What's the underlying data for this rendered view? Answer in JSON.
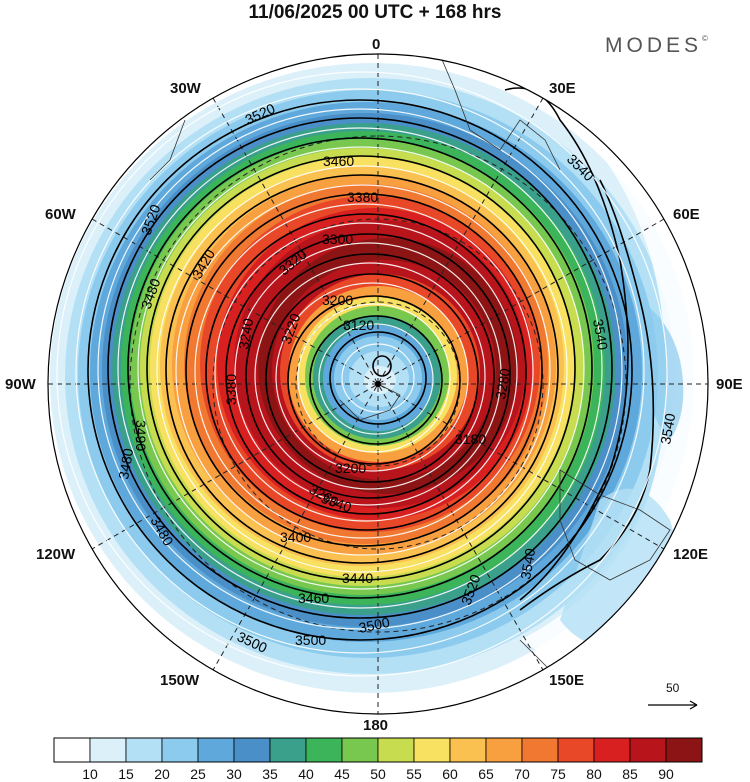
{
  "title": "11/06/2025  00 UTC  + 168 hrs",
  "brand": {
    "name": "MODES",
    "mark": "©"
  },
  "longitude_labels": {
    "top": "0",
    "bottom": "180",
    "left": "90W",
    "right": "90E",
    "w30": "30W",
    "e30": "30E",
    "w60": "60W",
    "e60": "60E",
    "w120": "120W",
    "e120": "120E",
    "w150": "150W",
    "e150": "150E"
  },
  "contour_labels": [
    "3120",
    "3180",
    "3200",
    "3200",
    "3220",
    "3240",
    "3260",
    "3280",
    "3300",
    "3320",
    "3340",
    "3380",
    "3380",
    "3400",
    "3420",
    "3440",
    "3460",
    "3460",
    "3480",
    "3480",
    "3480",
    "3490",
    "3500",
    "3500",
    "3500",
    "3520",
    "3520",
    "3520",
    "3540",
    "3540",
    "3540",
    "3540"
  ],
  "reference_vector": "50",
  "colorbar": {
    "colors": [
      "#ffffff",
      "#dcf0fa",
      "#b3e0f5",
      "#8ccbee",
      "#5fa8dc",
      "#4a8fc8",
      "#3aa08c",
      "#3cb45a",
      "#78c850",
      "#c8dc50",
      "#f8e060",
      "#fac050",
      "#f8a040",
      "#f07830",
      "#e84828",
      "#d82020",
      "#b8141c",
      "#8c1414"
    ],
    "labels": [
      "10",
      "15",
      "20",
      "25",
      "30",
      "35",
      "40",
      "45",
      "50",
      "55",
      "60",
      "65",
      "70",
      "75",
      "80",
      "85",
      "90"
    ]
  },
  "map_colors": {
    "jet": "#d82020",
    "core": "#8c1414",
    "vortex": "#4a8fc8"
  }
}
